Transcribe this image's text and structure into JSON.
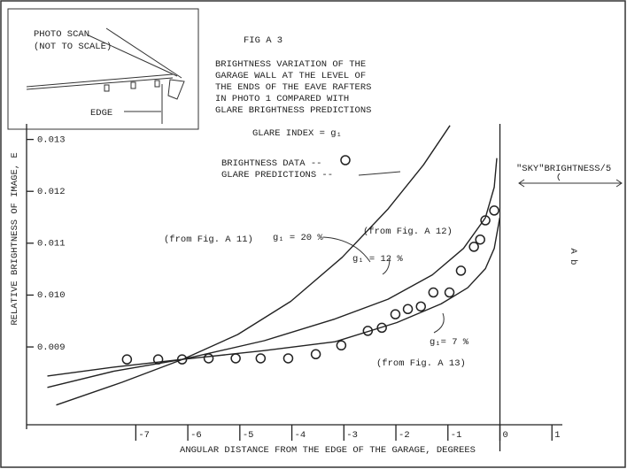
{
  "chart_data": {
    "type": "scatter",
    "figure_label": "FIG A 3",
    "title_lines": [
      "BRIGHTNESS VARIATION OF THE",
      "GARAGE WALL AT THE LEVEL OF",
      "THE ENDS OF THE EAVE RAFTERS",
      "IN PHOTO 1 COMPARED WITH",
      "GLARE BRIGHTNESS PREDICTIONS"
    ],
    "glare_index_label": "GLARE INDEX = g₁",
    "x_label": "ANGULAR DISTANCE FROM THE EDGE OF THE GARAGE, DEGREES",
    "y_label": "RELATIVE BRIGHTNESS OF IMAGE, E",
    "sky_label": "\"SKY\"BRIGHTNESS/5",
    "side_label": "A b",
    "inset": {
      "title": "PHOTO SCAN",
      "note": "(NOT TO SCALE)",
      "edge_label": "EDGE"
    },
    "legend_line_label": "GLARE PREDICTIONS --",
    "xlim": [
      -9.1,
      1.2
    ],
    "ylim": [
      0.0075,
      0.0133
    ],
    "xticks": [
      -7,
      -6,
      -5,
      -4,
      -3,
      -2,
      -1,
      0,
      1
    ],
    "yticks": [
      0.013,
      0.012,
      0.011,
      {
        "value": 0.01,
        "label": "0.010"
      },
      0.009
    ],
    "series": [
      {
        "name": "BRIGHTNESS DATA --",
        "mode": "markers",
        "color": "#222",
        "x": [
          -7.17,
          -6.57,
          -6.11,
          -5.6,
          -5.08,
          -4.6,
          -4.07,
          -3.54,
          -3.05,
          -2.54,
          -2.27,
          -2.01,
          -1.77,
          -1.52,
          -1.28,
          -0.97,
          -0.75,
          -0.5,
          -0.38,
          -0.28,
          -0.11
        ],
        "values": [
          0.00876,
          0.00876,
          0.00876,
          0.00878,
          0.00878,
          0.00878,
          0.00878,
          0.00886,
          0.00903,
          0.00931,
          0.00937,
          0.00963,
          0.00973,
          0.00978,
          0.01005,
          0.01005,
          0.01047,
          0.01093,
          0.01107,
          0.01144,
          0.01163
        ]
      },
      {
        "name": "g₁ = 20 %",
        "source": "(from Fig. A 11)",
        "mode": "line",
        "color": "#222",
        "x": [
          -8.53,
          -7.26,
          -6.1,
          -5.04,
          -4.02,
          -3.03,
          -2.15,
          -1.47,
          -0.96
        ],
        "values": [
          0.00788,
          0.00832,
          0.00876,
          0.00924,
          0.00988,
          0.01073,
          0.01166,
          0.01251,
          0.01327
        ]
      },
      {
        "name": "g₁ = 12 %",
        "source": "(from Fig. A 12)",
        "mode": "line",
        "color": "#222",
        "x": [
          -8.7,
          -7.43,
          -6.1,
          -4.53,
          -3.17,
          -2.15,
          -1.3,
          -0.7,
          -0.28,
          -0.11,
          -0.06
        ],
        "values": [
          0.00822,
          0.00853,
          0.00876,
          0.00912,
          0.00954,
          0.00992,
          0.01039,
          0.0109,
          0.01149,
          0.01208,
          0.01264
        ]
      },
      {
        "name": "g₁= 7 %",
        "source": "(from Fig. A 13)",
        "mode": "line",
        "color": "#222",
        "x": [
          -8.7,
          -7.43,
          -6.1,
          -4.53,
          -3.17,
          -1.98,
          -1.13,
          -0.62,
          -0.28,
          -0.11,
          -0.004
        ],
        "values": [
          0.00844,
          0.00861,
          0.00876,
          0.00893,
          0.0091,
          0.00947,
          0.00983,
          0.01014,
          0.01051,
          0.0109,
          0.01149
        ]
      }
    ]
  }
}
